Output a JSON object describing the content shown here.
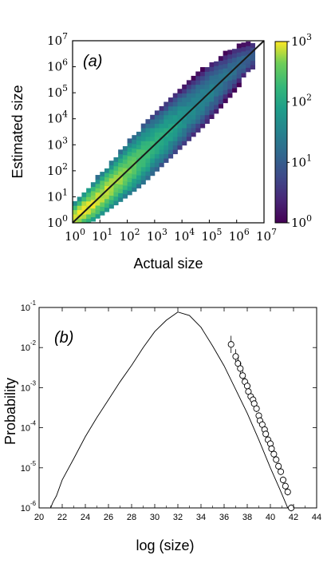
{
  "chart_data": [
    {
      "type": "heatmap",
      "panel_label": "(a)",
      "xlabel": "Actual size",
      "ylabel": "Estimated size",
      "xscale": "log",
      "yscale": "log",
      "xlim": [
        1,
        10000000
      ],
      "ylim": [
        1,
        10000000
      ],
      "x_ticks": [
        {
          "base": "10",
          "exp": "0"
        },
        {
          "base": "10",
          "exp": "1"
        },
        {
          "base": "10",
          "exp": "2"
        },
        {
          "base": "10",
          "exp": "3"
        },
        {
          "base": "10",
          "exp": "4"
        },
        {
          "base": "10",
          "exp": "5"
        },
        {
          "base": "10",
          "exp": "6"
        },
        {
          "base": "10",
          "exp": "7"
        }
      ],
      "y_ticks": [
        {
          "base": "10",
          "exp": "0"
        },
        {
          "base": "10",
          "exp": "1"
        },
        {
          "base": "10",
          "exp": "2"
        },
        {
          "base": "10",
          "exp": "3"
        },
        {
          "base": "10",
          "exp": "4"
        },
        {
          "base": "10",
          "exp": "5"
        },
        {
          "base": "10",
          "exp": "6"
        },
        {
          "base": "10",
          "exp": "7"
        }
      ],
      "colorbar": {
        "colormap": "viridis",
        "scale": "log",
        "range": [
          1,
          1000
        ],
        "ticks": [
          {
            "base": "10",
            "exp": "0"
          },
          {
            "base": "10",
            "exp": "1"
          },
          {
            "base": "10",
            "exp": "2"
          },
          {
            "base": "10",
            "exp": "3"
          }
        ]
      },
      "reference_line": "y = x",
      "counts_by_log10_x": [
        {
          "x": 0.0,
          "center": 0.1,
          "width": 0.25,
          "peak": 1000
        },
        {
          "x": 0.5,
          "center": 0.55,
          "width": 0.3,
          "peak": 900
        },
        {
          "x": 1.0,
          "center": 1.0,
          "width": 0.35,
          "peak": 800
        },
        {
          "x": 1.5,
          "center": 1.5,
          "width": 0.4,
          "peak": 600
        },
        {
          "x": 2.0,
          "center": 2.0,
          "width": 0.45,
          "peak": 400
        },
        {
          "x": 2.5,
          "center": 2.5,
          "width": 0.5,
          "peak": 250
        },
        {
          "x": 3.0,
          "center": 3.0,
          "width": 0.5,
          "peak": 150
        },
        {
          "x": 3.5,
          "center": 3.5,
          "width": 0.5,
          "peak": 100
        },
        {
          "x": 4.0,
          "center": 4.0,
          "width": 0.5,
          "peak": 60
        },
        {
          "x": 4.5,
          "center": 4.5,
          "width": 0.5,
          "peak": 40
        },
        {
          "x": 5.0,
          "center": 5.0,
          "width": 0.5,
          "peak": 30
        },
        {
          "x": 5.5,
          "center": 5.5,
          "width": 0.45,
          "peak": 20
        },
        {
          "x": 6.0,
          "center": 6.0,
          "width": 0.4,
          "peak": 15
        },
        {
          "x": 6.5,
          "center": 6.4,
          "width": 0.3,
          "peak": 10
        }
      ]
    },
    {
      "type": "line",
      "panel_label": "(b)",
      "xlabel": "log (size)",
      "ylabel": "Probability",
      "xlim": [
        20,
        44
      ],
      "ylim": [
        1e-06,
        0.1
      ],
      "yscale": "log",
      "x_ticks": [
        "20",
        "22",
        "24",
        "26",
        "28",
        "30",
        "32",
        "34",
        "36",
        "38",
        "40",
        "42",
        "44"
      ],
      "y_ticks": [
        {
          "base": "10",
          "exp": "-1"
        },
        {
          "base": "10",
          "exp": "-2"
        },
        {
          "base": "10",
          "exp": "-3"
        },
        {
          "base": "10",
          "exp": "-4"
        },
        {
          "base": "10",
          "exp": "-5"
        },
        {
          "base": "10",
          "exp": "-6"
        }
      ],
      "curve": {
        "x": [
          21.0,
          21.2,
          21.5,
          22.0,
          23.0,
          24.0,
          25.0,
          26.0,
          27.0,
          28.0,
          29.0,
          30.0,
          31.0,
          32.0,
          33.0,
          34.0,
          35.0,
          36.0,
          37.0,
          38.0,
          39.0,
          40.0,
          40.8,
          41.5
        ],
        "y": [
          1e-06,
          1.4e-06,
          2e-06,
          5e-06,
          1.7e-05,
          6e-05,
          0.00018,
          0.0005,
          0.0014,
          0.0036,
          0.01,
          0.025,
          0.048,
          0.077,
          0.063,
          0.032,
          0.011,
          0.0035,
          0.0009,
          0.00023,
          5e-05,
          1e-05,
          3e-06,
          1e-06
        ]
      },
      "points": {
        "x": [
          36.6,
          37.0,
          37.2,
          37.4,
          37.6,
          37.8,
          38.0,
          38.1,
          38.3,
          38.5,
          38.6,
          38.8,
          39.0,
          39.1,
          39.3,
          39.5,
          39.6,
          39.8,
          40.0,
          40.1,
          40.3,
          40.5,
          40.7,
          40.9,
          41.1,
          41.3,
          41.5,
          41.8
        ],
        "y": [
          0.012,
          0.006,
          0.004,
          0.003,
          0.002,
          0.0014,
          0.0011,
          0.0008,
          0.0006,
          0.0005,
          0.0004,
          0.0003,
          0.0002,
          0.00015,
          0.00012,
          9e-05,
          7e-05,
          5e-05,
          4e-05,
          3e-05,
          2.2e-05,
          1.6e-05,
          1.1e-05,
          8e-06,
          5e-06,
          3.5e-06,
          2.5e-06,
          1e-06
        ],
        "marker": "open-circle",
        "error_bars": true
      }
    }
  ]
}
